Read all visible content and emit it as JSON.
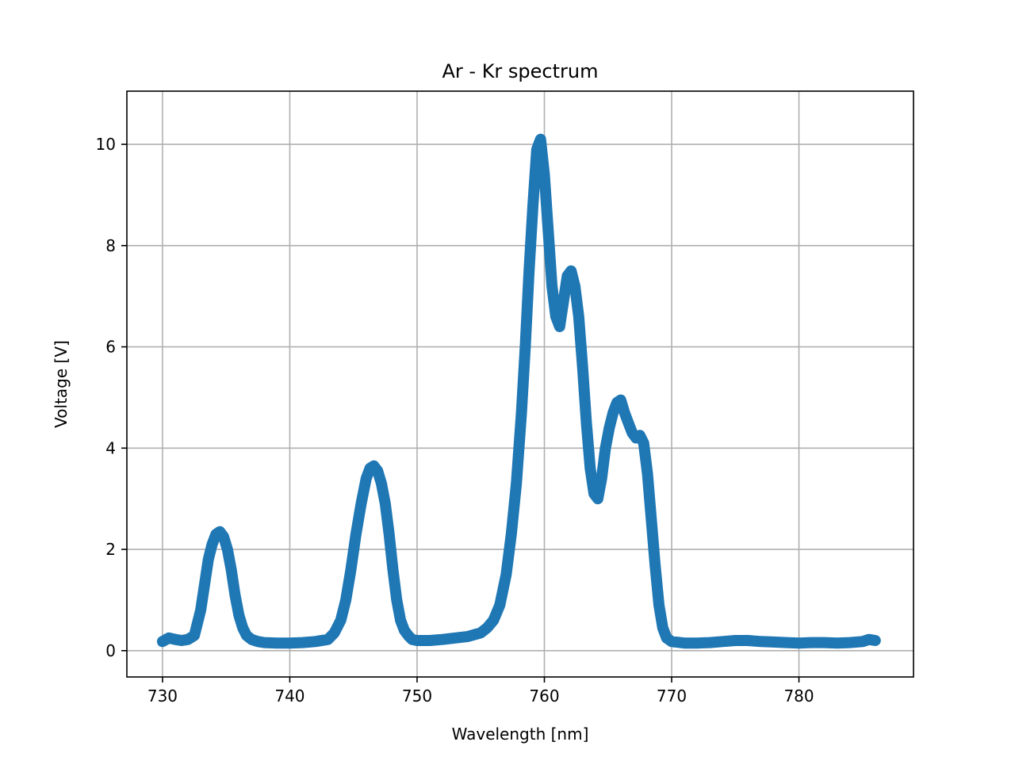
{
  "chart_data": {
    "type": "scatter",
    "title": "Ar - Kr spectrum",
    "xlabel": "Wavelength [nm]",
    "ylabel": "Voltage [V]",
    "xlim": [
      727.2,
      789.0
    ],
    "ylim": [
      -0.52,
      11.05
    ],
    "xticks": [
      730,
      740,
      750,
      760,
      770,
      780
    ],
    "yticks": [
      0,
      2,
      4,
      6,
      8,
      10
    ],
    "xtick_labels": [
      "730",
      "740",
      "750",
      "760",
      "770",
      "780"
    ],
    "ytick_labels": [
      "0",
      "2",
      "4",
      "6",
      "8",
      "10"
    ],
    "grid": true,
    "legend": "none",
    "series": [
      {
        "color": "#1f77b4",
        "x": [
          730.0,
          730.5,
          731.0,
          731.5,
          732.0,
          732.5,
          733.0,
          733.3,
          733.6,
          733.9,
          734.2,
          734.5,
          734.8,
          735.1,
          735.4,
          735.7,
          736.0,
          736.3,
          736.6,
          737.0,
          737.5,
          738.0,
          739.0,
          740.0,
          741.0,
          742.0,
          743.0,
          743.5,
          744.0,
          744.4,
          744.8,
          745.2,
          745.6,
          746.0,
          746.3,
          746.6,
          746.9,
          747.2,
          747.5,
          747.8,
          748.1,
          748.4,
          748.7,
          749.0,
          749.3,
          749.6,
          750.0,
          751.0,
          752.0,
          753.0,
          754.0,
          755.0,
          755.5,
          756.0,
          756.5,
          757.0,
          757.4,
          757.8,
          758.2,
          758.5,
          758.8,
          759.1,
          759.4,
          759.7,
          760.0,
          760.3,
          760.6,
          760.9,
          761.2,
          761.5,
          761.8,
          762.1,
          762.4,
          762.7,
          763.0,
          763.3,
          763.6,
          763.9,
          764.2,
          764.5,
          764.8,
          765.1,
          765.4,
          765.7,
          766.0,
          766.3,
          766.6,
          766.9,
          767.2,
          767.5,
          767.8,
          768.1,
          768.4,
          768.7,
          769.0,
          769.3,
          769.6,
          770.0,
          771.0,
          772.0,
          773.0,
          774.0,
          775.0,
          776.0,
          777.0,
          778.0,
          779.0,
          780.0,
          781.0,
          782.0,
          783.0,
          784.0,
          785.0,
          785.5,
          786.0
        ],
        "y": [
          0.18,
          0.25,
          0.22,
          0.2,
          0.22,
          0.3,
          0.8,
          1.3,
          1.8,
          2.1,
          2.3,
          2.35,
          2.25,
          2.0,
          1.6,
          1.1,
          0.7,
          0.45,
          0.3,
          0.22,
          0.18,
          0.16,
          0.15,
          0.15,
          0.16,
          0.18,
          0.22,
          0.35,
          0.6,
          1.0,
          1.6,
          2.3,
          2.9,
          3.4,
          3.6,
          3.65,
          3.55,
          3.3,
          2.9,
          2.3,
          1.6,
          1.0,
          0.6,
          0.4,
          0.3,
          0.22,
          0.2,
          0.2,
          0.22,
          0.25,
          0.28,
          0.35,
          0.45,
          0.6,
          0.9,
          1.5,
          2.3,
          3.3,
          4.7,
          6.0,
          7.5,
          8.8,
          9.9,
          10.1,
          9.4,
          8.3,
          7.2,
          6.6,
          6.4,
          6.9,
          7.4,
          7.5,
          7.2,
          6.6,
          5.6,
          4.5,
          3.6,
          3.1,
          3.0,
          3.4,
          4.0,
          4.4,
          4.7,
          4.9,
          4.95,
          4.7,
          4.5,
          4.3,
          4.2,
          4.25,
          4.1,
          3.5,
          2.6,
          1.7,
          0.9,
          0.45,
          0.25,
          0.18,
          0.15,
          0.15,
          0.16,
          0.18,
          0.2,
          0.2,
          0.18,
          0.17,
          0.16,
          0.15,
          0.16,
          0.16,
          0.15,
          0.16,
          0.18,
          0.22,
          0.2
        ]
      }
    ]
  }
}
